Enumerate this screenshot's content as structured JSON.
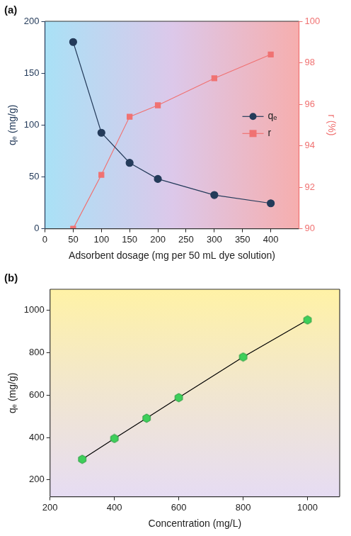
{
  "chart_data": [
    {
      "type": "line",
      "title": "(a)",
      "x_label": "Adsorbent dosage (mg per 50 mL dye solution)",
      "y_label": "qₑ (mg/g)",
      "y2_label": "r (%)",
      "x": [
        50,
        100,
        150,
        200,
        300,
        400
      ],
      "xlim": [
        0,
        450
      ],
      "xticks": [
        0,
        50,
        100,
        150,
        200,
        250,
        300,
        350,
        400
      ],
      "ylim": [
        0,
        200
      ],
      "yticks": [
        0,
        50,
        100,
        150,
        200
      ],
      "y2lim": [
        90,
        100
      ],
      "y2ticks": [
        90,
        92,
        94,
        96,
        98,
        100
      ],
      "grid": false,
      "legend": "right",
      "series": [
        {
          "name": "qₑ",
          "color": "#243b5a",
          "marker": "circle",
          "values": [
            180,
            92.5,
            63.5,
            48,
            32.5,
            24.5
          ]
        },
        {
          "name": "r",
          "color": "#f07272",
          "marker": "square",
          "axis": "y2",
          "values": [
            90.0,
            92.6,
            95.4,
            95.95,
            97.25,
            98.4
          ]
        }
      ]
    },
    {
      "type": "line",
      "title": "(b)",
      "x_label": "Concentration (mg/L)",
      "y_label": "qₑ (mg/g)",
      "x": [
        300,
        400,
        500,
        600,
        800,
        1000
      ],
      "xlim": [
        200,
        1100
      ],
      "xticks": [
        200,
        400,
        600,
        800,
        1000
      ],
      "ylim": [
        120,
        1100
      ],
      "yticks": [
        200,
        400,
        600,
        800,
        1000
      ],
      "grid": false,
      "series": [
        {
          "color": "#3ecf5a",
          "marker": "hexagon",
          "values": [
            297,
            395,
            491,
            588,
            780,
            955
          ]
        }
      ]
    }
  ]
}
